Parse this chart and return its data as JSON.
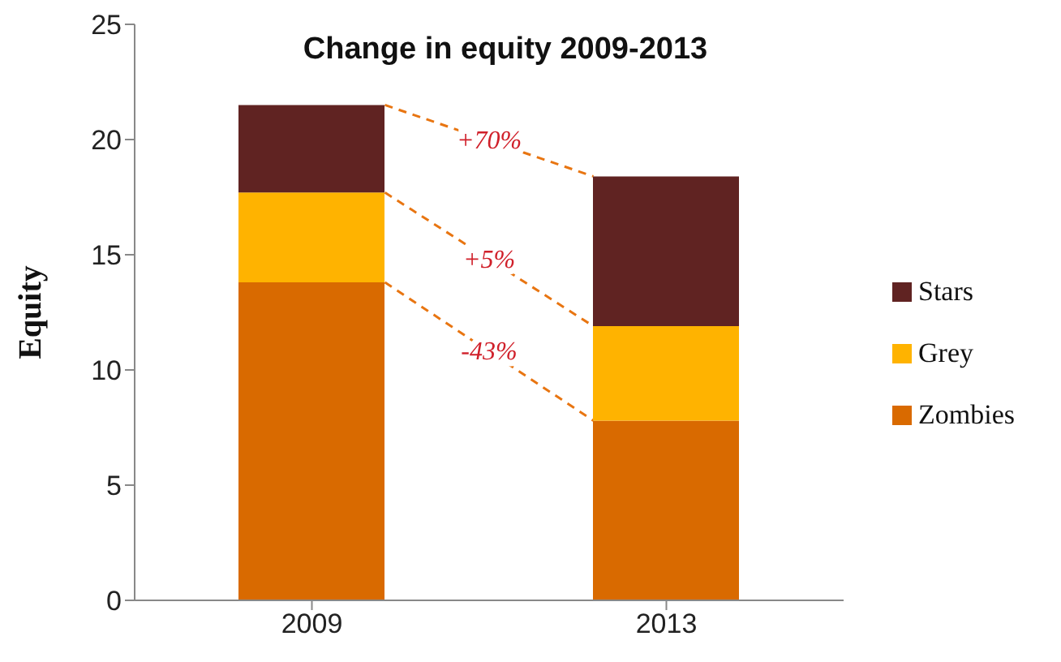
{
  "chart_data": {
    "type": "bar",
    "title": "Change in equity 2009-2013",
    "ylabel": "Equity",
    "categories": [
      "2009",
      "2013"
    ],
    "stacked": true,
    "series": [
      {
        "name": "Zombies",
        "color": "#d96a00",
        "values": [
          13.8,
          7.8
        ]
      },
      {
        "name": "Grey",
        "color": "#ffb300",
        "values": [
          3.9,
          4.1
        ]
      },
      {
        "name": "Stars",
        "color": "#602322",
        "values": [
          3.8,
          6.5
        ]
      }
    ],
    "ylim": [
      0,
      25
    ],
    "yticks": [
      0,
      5,
      10,
      15,
      20,
      25
    ],
    "legend": "right",
    "annotations": [
      "+70%",
      "+5%",
      "-43%"
    ]
  }
}
